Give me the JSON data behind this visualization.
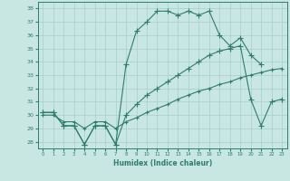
{
  "xlabel": "Humidex (Indice chaleur)",
  "xlim": [
    -0.5,
    23.5
  ],
  "ylim": [
    27.5,
    38.5
  ],
  "yticks": [
    28,
    29,
    30,
    31,
    32,
    33,
    34,
    35,
    36,
    37,
    38
  ],
  "xticks": [
    0,
    1,
    2,
    3,
    4,
    5,
    6,
    7,
    8,
    9,
    10,
    11,
    12,
    13,
    14,
    15,
    16,
    17,
    18,
    19,
    20,
    21,
    22,
    23
  ],
  "bg_color": "#c8e6e2",
  "grid_color": "#a8ceca",
  "line_color": "#2e7d6e",
  "line1_x": [
    0,
    1,
    2,
    3,
    4,
    5,
    6,
    7,
    8,
    9,
    10,
    11,
    12,
    13,
    14,
    15,
    16,
    17,
    18,
    19,
    20,
    21
  ],
  "line1_y": [
    30.2,
    30.2,
    29.2,
    29.2,
    27.8,
    29.2,
    29.2,
    27.8,
    33.8,
    36.3,
    37.0,
    37.8,
    37.8,
    37.5,
    37.8,
    37.5,
    37.8,
    36.0,
    35.2,
    35.8,
    34.5,
    33.8
  ],
  "line2_x": [
    0,
    1,
    2,
    3,
    4,
    5,
    6,
    7,
    8,
    9,
    10,
    11,
    12,
    13,
    14,
    15,
    16,
    17,
    18,
    19,
    20,
    21,
    22,
    23
  ],
  "line2_y": [
    30.2,
    30.2,
    29.2,
    29.2,
    27.8,
    29.2,
    29.2,
    27.8,
    30.0,
    30.8,
    31.5,
    32.0,
    32.5,
    33.0,
    33.5,
    34.0,
    34.5,
    34.8,
    35.0,
    35.2,
    31.2,
    29.2,
    31.0,
    31.2
  ],
  "line3_x": [
    0,
    1,
    2,
    3,
    4,
    5,
    6,
    7,
    8,
    9,
    10,
    11,
    12,
    13,
    14,
    15,
    16,
    17,
    18,
    19,
    20,
    21,
    22,
    23
  ],
  "line3_y": [
    30.0,
    30.0,
    29.5,
    29.5,
    29.0,
    29.5,
    29.5,
    29.0,
    29.5,
    29.8,
    30.2,
    30.5,
    30.8,
    31.2,
    31.5,
    31.8,
    32.0,
    32.3,
    32.5,
    32.8,
    33.0,
    33.2,
    33.4,
    33.5
  ]
}
